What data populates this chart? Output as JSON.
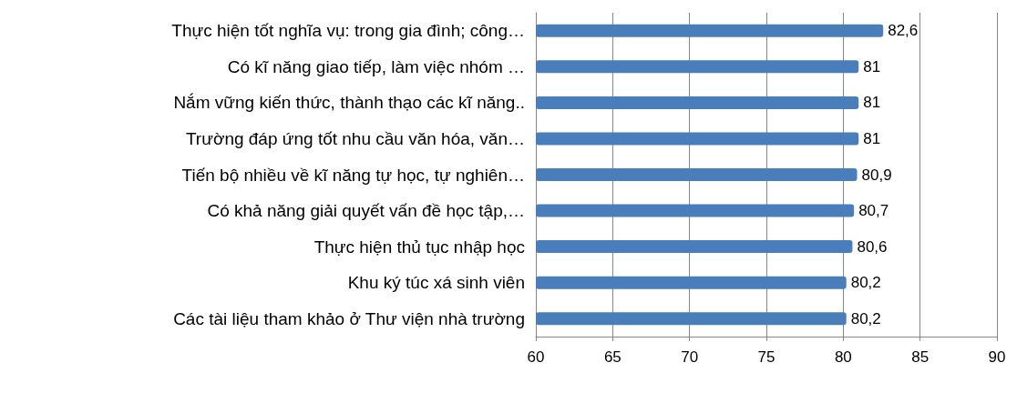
{
  "chart_data": {
    "type": "bar",
    "orientation": "horizontal",
    "categories": [
      "Thực hiện tốt nghĩa vụ: trong gia đình; công…",
      "Có kĩ năng giao tiếp, làm việc nhóm …",
      "Nắm vững kiến thức, thành thạo các kĩ năng..",
      "Trường đáp ứng tốt nhu cầu văn hóa, văn…",
      "Tiến bộ nhiều về kĩ năng tự học, tự nghiên…",
      "Có khả năng giải quyết vấn đề học tập,…",
      "Thực hiện thủ tục nhập học",
      "Khu ký túc xá sinh viên",
      "Các tài liệu tham khảo ở Thư viện nhà trường"
    ],
    "values": [
      82.6,
      81,
      81,
      81,
      80.9,
      80.7,
      80.6,
      80.2,
      80.2
    ],
    "value_labels": [
      "82,6",
      "81",
      "81",
      "81",
      "80,9",
      "80,7",
      "80,6",
      "80,2",
      "80,2"
    ],
    "color": "#4a7ebb",
    "xlim": [
      60,
      90
    ],
    "xticks": [
      60,
      65,
      70,
      75,
      80,
      85,
      90
    ],
    "grid": "x"
  }
}
